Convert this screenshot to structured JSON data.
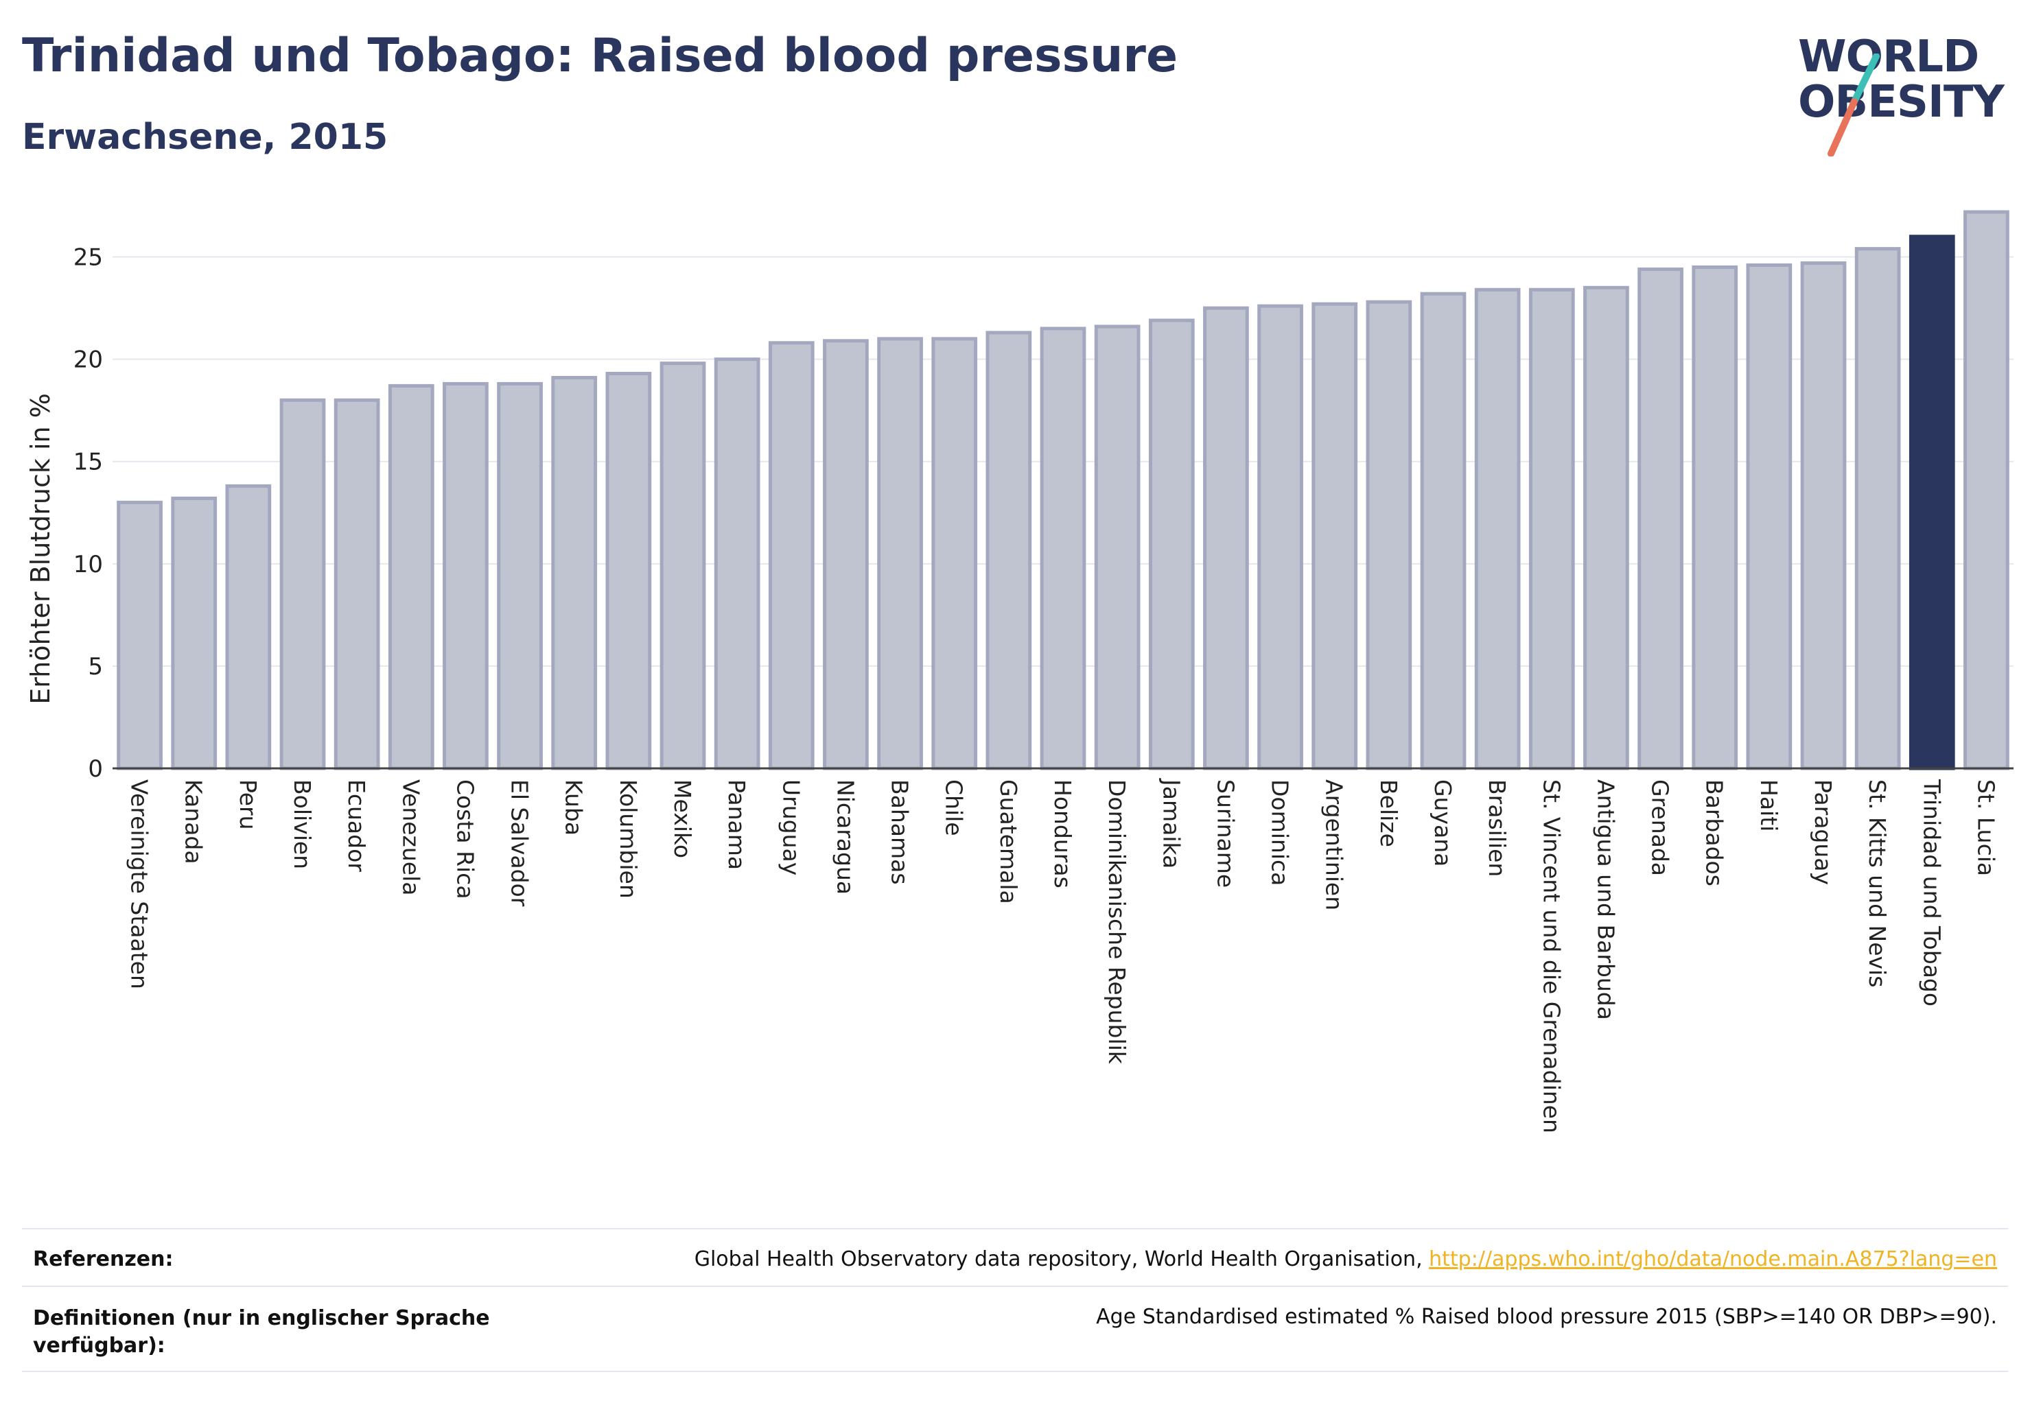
{
  "header": {
    "title": "Trinidad und Tobago: Raised blood pressure",
    "subtitle": "Erwachsene, 2015"
  },
  "logo": {
    "line1": "WORLD",
    "line2": "OBESITY",
    "slash_colors": [
      "#3cbfb4",
      "#e8735a"
    ]
  },
  "chart_data": {
    "type": "bar",
    "ylabel": "Erhöhter Blutdruck in %",
    "ylim": [
      0,
      27.5
    ],
    "yticks": [
      0,
      5,
      10,
      15,
      20,
      25
    ],
    "grid": true,
    "highlight": "Trinidad und Tobago",
    "colors": {
      "bar": "#c0c3d0",
      "bar_border": "#a3a8bf",
      "highlight": "#2b365e"
    },
    "categories": [
      "Vereinigte Staaten",
      "Kanada",
      "Peru",
      "Bolivien",
      "Ecuador",
      "Venezuela",
      "Costa Rica",
      "El Salvador",
      "Kuba",
      "Kolumbien",
      "Mexiko",
      "Panama",
      "Uruguay",
      "Nicaragua",
      "Bahamas",
      "Chile",
      "Guatemala",
      "Honduras",
      "Dominikanische Republik",
      "Jamaika",
      "Suriname",
      "Dominica",
      "Argentinien",
      "Belize",
      "Guyana",
      "Brasilien",
      "St. Vincent und die Grenadinen",
      "Antigua und Barbuda",
      "Grenada",
      "Barbados",
      "Haiti",
      "Paraguay",
      "St. Kitts und Nevis",
      "Trinidad und Tobago",
      "St. Lucia"
    ],
    "values": [
      13.0,
      13.2,
      13.8,
      18.0,
      18.0,
      18.7,
      18.8,
      18.8,
      19.1,
      19.3,
      19.8,
      20.0,
      20.8,
      20.9,
      21.0,
      21.0,
      21.3,
      21.5,
      21.6,
      21.9,
      22.5,
      22.6,
      22.7,
      22.8,
      23.2,
      23.4,
      23.4,
      23.5,
      24.4,
      24.5,
      24.6,
      24.7,
      25.4,
      26.0,
      27.2
    ]
  },
  "footer": {
    "references_label": "Referenzen:",
    "references_text": "Global Health Observatory data repository, World Health Organisation, ",
    "references_link": "http://apps.who.int/gho/data/node.main.A875?lang=en",
    "definitions_label": "Definitionen (nur in englischer Sprache verfügbar):",
    "definitions_text": "Age Standardised estimated % Raised blood pressure 2015 (SBP>=140 OR DBP>=90)."
  }
}
